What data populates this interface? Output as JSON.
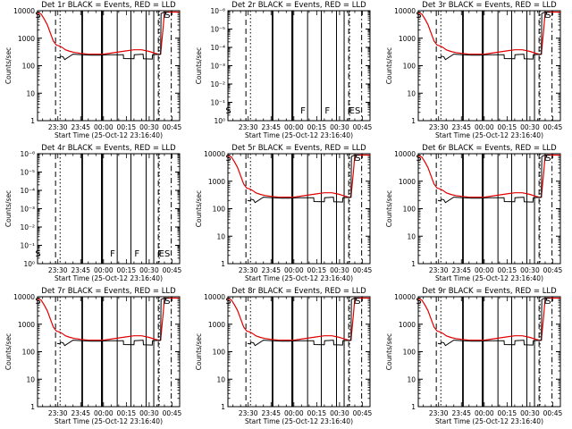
{
  "figure": {
    "time_tick_labels": [
      "23:30",
      "23:45",
      "00:00",
      "00:15",
      "00:30",
      "00:45"
    ],
    "ylabel": "Counts/sec",
    "xlabel": "Start Time (25-Oct-12 23:16:40)",
    "colors": {
      "events": "#000000",
      "lld": "#e00000",
      "frame": "#000000",
      "background": "#ffffff"
    }
  },
  "chart_data": [
    {
      "type": "line",
      "title": "Det 1r BLACK = Events, RED = LLD",
      "xlabel": "Start Time (25-Oct-12 23:16:40)",
      "ylabel": "Counts/sec",
      "yscale": "log",
      "ylim": [
        1,
        10000
      ],
      "ytick_labels": [
        "1",
        "10",
        "100",
        "1000",
        "10000"
      ],
      "xtick_labels": [
        "23:30",
        "23:45",
        "00:00",
        "00:15",
        "00:30",
        "00:45"
      ],
      "has_data": true,
      "markers": [
        {
          "label": "S",
          "x": "23:17"
        },
        {
          "label": "F",
          "x": "00:41"
        },
        {
          "label": "S",
          "x": "00:42"
        }
      ],
      "series": [
        {
          "color": "red"
        },
        {
          "color": "black"
        }
      ]
    },
    {
      "type": "line",
      "title": "Det 2r BLACK = Events, RED = LLD",
      "xlabel": "Start Time (25-Oct-12 23:16:40)",
      "ylabel": "Counts/sec",
      "yscale": "log",
      "ylim": [
        1,
        1e-06
      ],
      "ytick_labels": [
        "10⁰",
        "10⁻¹",
        "10⁻²",
        "10⁻³",
        "10⁻⁴",
        "10⁻⁵",
        "10⁻⁶"
      ],
      "xtick_labels": [
        "23:30",
        "23:45",
        "00:00",
        "00:15",
        "00:30",
        "00:45"
      ],
      "has_data": false,
      "markers": [
        {
          "label": "S",
          "x": "23:17"
        },
        {
          "label": "F",
          "x": "00:06"
        },
        {
          "label": "F",
          "x": "00:22"
        },
        {
          "label": "F",
          "x": "00:37"
        },
        {
          "label": "ES",
          "x": "00:40"
        }
      ]
    },
    {
      "type": "line",
      "title": "Det 3r BLACK = Events, RED = LLD",
      "xlabel": "Start Time (25-Oct-12 23:16:40)",
      "ylabel": "Counts/sec",
      "yscale": "log",
      "ylim": [
        1,
        10000
      ],
      "ytick_labels": [
        "1",
        "10",
        "100",
        "1000",
        "10000"
      ],
      "xtick_labels": [
        "23:30",
        "23:45",
        "00:00",
        "00:15",
        "00:30",
        "00:45"
      ],
      "has_data": true,
      "markers": [
        {
          "label": "S",
          "x": "23:17"
        },
        {
          "label": "F",
          "x": "00:41"
        },
        {
          "label": "S",
          "x": "00:42"
        }
      ],
      "series": [
        {
          "color": "red"
        },
        {
          "color": "black"
        }
      ]
    },
    {
      "type": "line",
      "title": "Det 4r BLACK = Events, RED = LLD",
      "xlabel": "Start Time (25-Oct-12 23:16:40)",
      "ylabel": "Counts/sec",
      "yscale": "log",
      "ylim": [
        1,
        1e-06
      ],
      "ytick_labels": [
        "10⁰",
        "10⁻¹",
        "10⁻²",
        "10⁻³",
        "10⁻⁴",
        "10⁻⁵",
        "10⁻⁶"
      ],
      "xtick_labels": [
        "23:30",
        "23:45",
        "00:00",
        "00:15",
        "00:30",
        "00:45"
      ],
      "has_data": false,
      "markers": [
        {
          "label": "S",
          "x": "23:17"
        },
        {
          "label": "F",
          "x": "00:06"
        },
        {
          "label": "F",
          "x": "00:22"
        },
        {
          "label": "F",
          "x": "00:37"
        },
        {
          "label": "ES",
          "x": "00:40"
        }
      ]
    },
    {
      "type": "line",
      "title": "Det 5r BLACK = Events, RED = LLD",
      "xlabel": "Start Time (25-Oct-12 23:16:40)",
      "ylabel": "Counts/sec",
      "yscale": "log",
      "ylim": [
        1,
        10000
      ],
      "ytick_labels": [
        "1",
        "10",
        "100",
        "1000",
        "10000"
      ],
      "xtick_labels": [
        "23:30",
        "23:45",
        "00:00",
        "00:15",
        "00:30",
        "00:45"
      ],
      "has_data": true,
      "markers": [
        {
          "label": "S",
          "x": "23:17"
        },
        {
          "label": "F",
          "x": "00:41"
        },
        {
          "label": "S",
          "x": "00:42"
        }
      ],
      "series": [
        {
          "color": "red"
        },
        {
          "color": "black"
        }
      ]
    },
    {
      "type": "line",
      "title": "Det 6r BLACK = Events, RED = LLD",
      "xlabel": "Start Time (25-Oct-12 23:16:40)",
      "ylabel": "Counts/sec",
      "yscale": "log",
      "ylim": [
        1,
        10000
      ],
      "ytick_labels": [
        "1",
        "10",
        "100",
        "1000",
        "10000"
      ],
      "xtick_labels": [
        "23:30",
        "23:45",
        "00:00",
        "00:15",
        "00:30",
        "00:45"
      ],
      "has_data": true,
      "markers": [
        {
          "label": "S",
          "x": "23:17"
        },
        {
          "label": "F",
          "x": "00:41"
        },
        {
          "label": "S",
          "x": "00:42"
        }
      ],
      "series": [
        {
          "color": "red"
        },
        {
          "color": "black"
        }
      ]
    },
    {
      "type": "line",
      "title": "Det 7r BLACK = Events, RED = LLD",
      "xlabel": "Start Time (25-Oct-12 23:16:40)",
      "ylabel": "Counts/sec",
      "yscale": "log",
      "ylim": [
        1,
        10000
      ],
      "ytick_labels": [
        "1",
        "10",
        "100",
        "1000",
        "10000"
      ],
      "xtick_labels": [
        "23:30",
        "23:45",
        "00:00",
        "00:15",
        "00:30",
        "00:45"
      ],
      "has_data": true,
      "markers": [
        {
          "label": "S",
          "x": "23:17"
        },
        {
          "label": "F",
          "x": "00:41"
        },
        {
          "label": "S",
          "x": "00:42"
        }
      ],
      "series": [
        {
          "color": "red"
        },
        {
          "color": "black"
        }
      ]
    },
    {
      "type": "line",
      "title": "Det 8r BLACK = Events, RED = LLD",
      "xlabel": "Start Time (25-Oct-12 23:16:40)",
      "ylabel": "Counts/sec",
      "yscale": "log",
      "ylim": [
        1,
        10000
      ],
      "ytick_labels": [
        "1",
        "10",
        "100",
        "1000",
        "10000"
      ],
      "xtick_labels": [
        "23:30",
        "23:45",
        "00:00",
        "00:15",
        "00:30",
        "00:45"
      ],
      "has_data": true,
      "markers": [
        {
          "label": "S",
          "x": "23:17"
        },
        {
          "label": "F",
          "x": "00:41"
        },
        {
          "label": "S",
          "x": "00:42"
        }
      ],
      "series": [
        {
          "color": "red"
        },
        {
          "color": "black"
        }
      ]
    },
    {
      "type": "line",
      "title": "Det 9r BLACK = Events, RED = LLD",
      "xlabel": "Start Time (25-Oct-12 23:16:40)",
      "ylabel": "Counts/sec",
      "yscale": "log",
      "ylim": [
        1,
        10000
      ],
      "ytick_labels": [
        "1",
        "10",
        "100",
        "1000",
        "10000"
      ],
      "xtick_labels": [
        "23:30",
        "23:45",
        "00:00",
        "00:15",
        "00:30",
        "00:45"
      ],
      "has_data": true,
      "markers": [
        {
          "label": "S",
          "x": "23:17"
        },
        {
          "label": "F",
          "x": "00:41"
        },
        {
          "label": "S",
          "x": "00:42"
        }
      ],
      "series": [
        {
          "color": "red"
        },
        {
          "color": "black"
        }
      ]
    }
  ]
}
